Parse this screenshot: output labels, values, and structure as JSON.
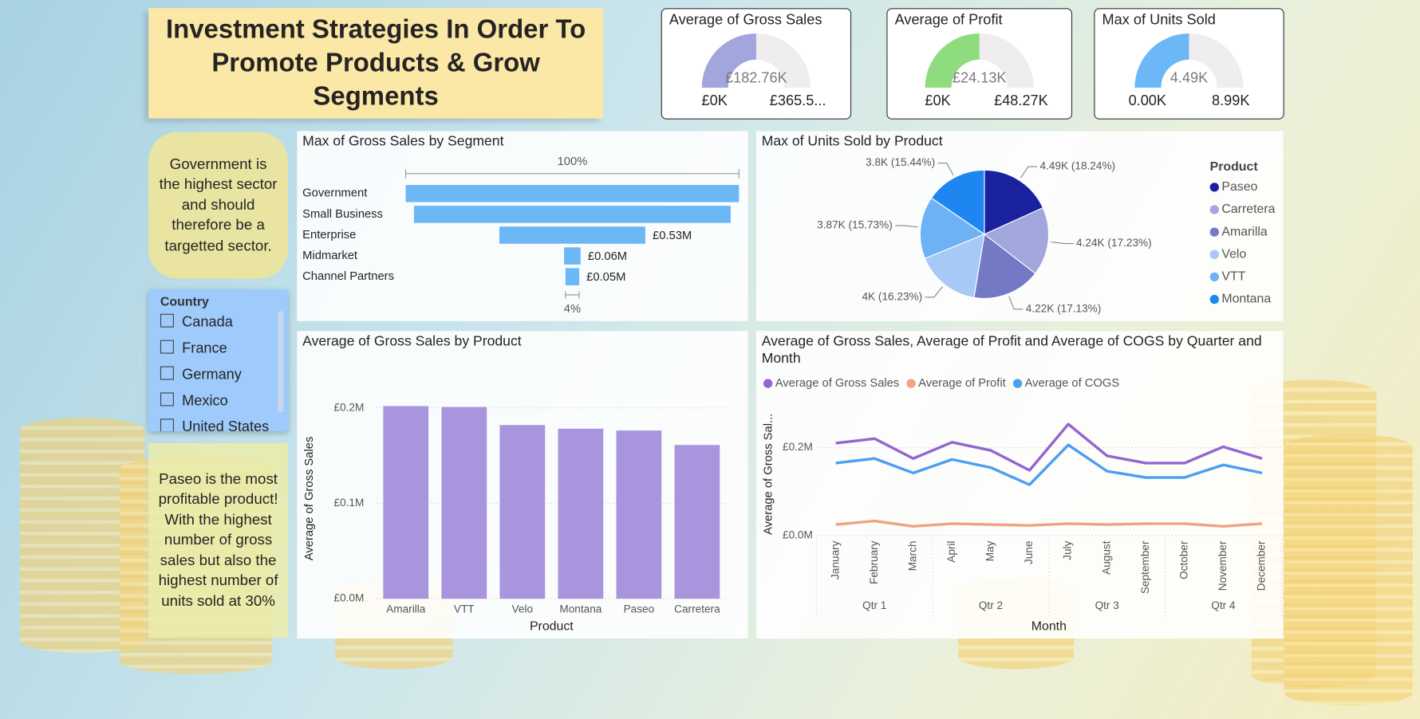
{
  "header": {
    "title": "Investment Strategies In Order To Promote Products & Grow Segments"
  },
  "notes": [
    "Government is the highest sector and should therefore be a targetted sector.",
    "Paseo is the most profitable product! With the highest number of gross sales but also the highest number of units sold at 30%"
  ],
  "slicer": {
    "title": "Country",
    "items": [
      "Canada",
      "France",
      "Germany",
      "Mexico",
      "United States"
    ]
  },
  "chart_data": [
    {
      "type": "gauge",
      "title": "Average of Gross Sales",
      "value": 182760,
      "value_label": "£182.76K",
      "min": {
        "value": 0,
        "label": "£0K"
      },
      "max": {
        "value": 365520,
        "label": "£365.5..."
      },
      "color": "#a3a6dc"
    },
    {
      "type": "gauge",
      "title": "Average of Profit",
      "value": 24130,
      "value_label": "£24.13K",
      "min": {
        "value": 0,
        "label": "£0K"
      },
      "max": {
        "value": 48270,
        "label": "£48.27K"
      },
      "color": "#8fdc7f"
    },
    {
      "type": "gauge",
      "title": "Max of Units Sold",
      "value": 4490,
      "value_label": "4.49K",
      "min": {
        "value": 0,
        "label": "0.00K"
      },
      "max": {
        "value": 8990,
        "label": "8.99K"
      },
      "color": "#6cb8f7"
    },
    {
      "type": "funnel",
      "title": "Max of Gross Sales by Segment",
      "categories": [
        "Government",
        "Small Business",
        "Enterprise",
        "Midmarket",
        "Channel Partners"
      ],
      "values": [
        1210000,
        1150000,
        530000,
        60000,
        50000
      ],
      "value_labels": [
        null,
        null,
        "£0.53M",
        "£0.06M",
        "£0.05M"
      ],
      "top_label": "100%",
      "bottom_label": "4%",
      "color": "#6cb8f7"
    },
    {
      "type": "pie",
      "title": "Max of Units Sold by Product",
      "legend_title": "Product",
      "categories": [
        "Paseo",
        "Carretera",
        "Amarilla",
        "Velo",
        "VTT",
        "Montana"
      ],
      "values": [
        4490,
        4240,
        4220,
        4000,
        3870,
        3800
      ],
      "value_labels": [
        "4.49K (18.24%)",
        "4.24K (17.23%)",
        "4.22K (17.13%)",
        "4K (16.23%)",
        "3.87K (15.73%)",
        "3.8K (15.44%)"
      ],
      "colors": [
        "#1a22a0",
        "#a1a6dd",
        "#7479c6",
        "#a6c9f5",
        "#6cb2f5",
        "#1e86f0"
      ]
    },
    {
      "type": "bar",
      "title": "Average of Gross Sales by Product",
      "x_label": "Product",
      "y_label": "Average of Gross Sales",
      "categories": [
        "Amarilla",
        "VTT",
        "Velo",
        "Montana",
        "Paseo",
        "Carretera"
      ],
      "values": [
        201900,
        201000,
        182000,
        178200,
        176300,
        161100
      ],
      "color": "#a995dd",
      "ylim": [
        0,
        210000
      ],
      "yticks": [
        {
          "value": 0,
          "label": "£0.0M"
        },
        {
          "value": 100000,
          "label": "£0.1M"
        },
        {
          "value": 200000,
          "label": "£0.2M"
        }
      ],
      "grid": true
    },
    {
      "type": "line",
      "title": "Average of Gross Sales, Average of Profit and Average of COGS by Quarter and Month",
      "x_label": "Month",
      "y_label": "Average of Gross Sal...",
      "categories": [
        "January",
        "February",
        "March",
        "April",
        "May",
        "June",
        "July",
        "August",
        "September",
        "October",
        "November",
        "December"
      ],
      "quarters": [
        "Qtr 1",
        "Qtr 2",
        "Qtr 3",
        "Qtr 4"
      ],
      "series": [
        {
          "name": "Average of Gross Sales",
          "color": "#9366cf",
          "values": [
            210300,
            220600,
            175300,
            212400,
            193800,
            148500,
            253600,
            181400,
            164900,
            164900,
            202100,
            175300
          ]
        },
        {
          "name": "Average of Profit",
          "color": "#f0a283",
          "values": [
            24700,
            33000,
            20600,
            26800,
            24700,
            22700,
            26800,
            24700,
            26800,
            26800,
            20600,
            26800
          ]
        },
        {
          "name": "Average of COGS",
          "color": "#4a9ff0",
          "values": [
            164900,
            175300,
            142300,
            173200,
            154600,
            115500,
            206200,
            146400,
            132000,
            132000,
            160800,
            142300
          ]
        }
      ],
      "ylim": [
        0,
        300000
      ],
      "yticks": [
        {
          "value": 0,
          "label": "£0.0M"
        },
        {
          "value": 200000,
          "label": "£0.2M"
        }
      ],
      "grid": true
    }
  ]
}
